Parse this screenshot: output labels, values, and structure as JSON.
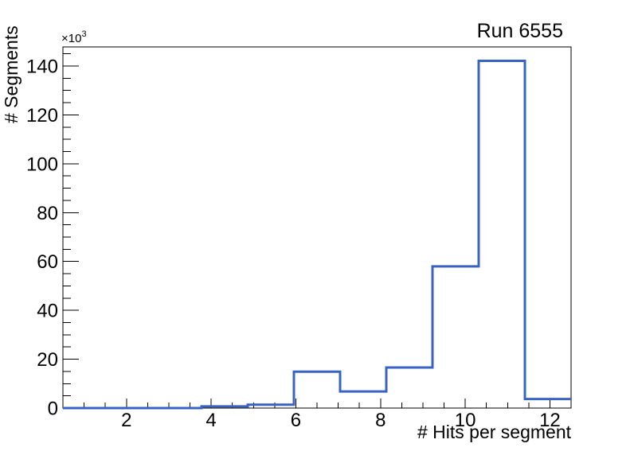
{
  "page": {
    "background": "#ffffff"
  },
  "chart_data": {
    "type": "bar",
    "style": "step-histogram-outline",
    "title": "Run 6555",
    "xlabel": "# Hits per segment",
    "ylabel": "# Segments",
    "y_axis_multiplier": "×10",
    "y_axis_multiplier_exp": "3",
    "bin_edges": [
      0.5,
      1.5909,
      2.6818,
      3.7727,
      4.8636,
      5.9545,
      7.0455,
      8.1364,
      9.2273,
      10.3182,
      11.4091,
      12.5
    ],
    "values": [
      0,
      0,
      0,
      700,
      1400,
      14900,
      6800,
      16600,
      58000,
      142100,
      3700
    ],
    "xlim": [
      0.5,
      12.5
    ],
    "ylim": [
      0,
      147800
    ],
    "x_major_ticks": [
      2,
      4,
      6,
      8,
      10,
      12
    ],
    "x_major_tick_labels": [
      "2",
      "4",
      "6",
      "8",
      "10",
      "12"
    ],
    "x_minor_step": 0.5,
    "y_major_ticks": [
      0,
      20000,
      40000,
      60000,
      80000,
      100000,
      120000,
      140000
    ],
    "y_major_tick_labels": [
      "0",
      "20",
      "40",
      "60",
      "80",
      "100",
      "120",
      "140"
    ],
    "y_minor_step": 5000,
    "grid": false,
    "legend": null,
    "line_color": "#3764c4",
    "line_width": 3,
    "frame_color": "#000000"
  }
}
